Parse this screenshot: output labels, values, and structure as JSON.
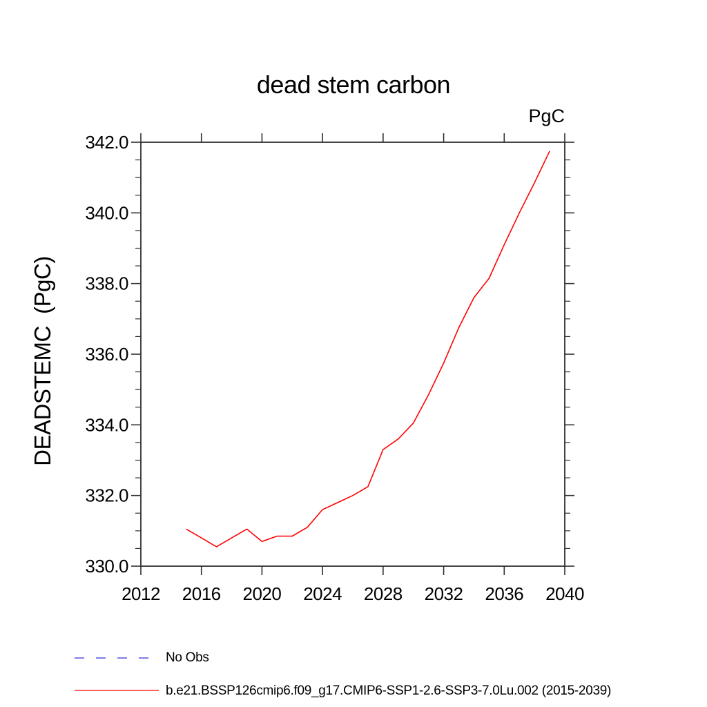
{
  "chart_data": {
    "type": "line",
    "title": "dead stem carbon",
    "units_label": "PgC",
    "ylabel": "DEADSTEMC  (PgC)",
    "xlabel": "",
    "xlim": [
      2012,
      2040
    ],
    "ylim": [
      330.0,
      342.0
    ],
    "grid": false,
    "x_ticks": [
      2012,
      2016,
      2020,
      2024,
      2028,
      2032,
      2036,
      2040
    ],
    "x_tick_labels": [
      "2012",
      "2016",
      "2020",
      "2024",
      "2028",
      "2032",
      "2036",
      "2040"
    ],
    "y_ticks": [
      330,
      332,
      334,
      336,
      338,
      340,
      342
    ],
    "y_tick_labels": [
      "330.0",
      "332.0",
      "334.0",
      "336.0",
      "338.0",
      "340.0",
      "342.0"
    ],
    "y_minor_step": 0.5,
    "axis_color": "#2f2f2f",
    "series": [
      {
        "name": "b.e21.BSSP126cmip6.f09_g17.CMIP6-SSP1-2.6-SSP3-7.0Lu.002 (2015-2039)",
        "color": "#ff0000",
        "style": "solid",
        "x": [
          2015,
          2016,
          2017,
          2018,
          2019,
          2020,
          2021,
          2022,
          2023,
          2024,
          2025,
          2026,
          2027,
          2028,
          2029,
          2030,
          2031,
          2032,
          2033,
          2034,
          2035,
          2036,
          2037,
          2038,
          2039
        ],
        "y": [
          331.05,
          330.8,
          330.55,
          330.8,
          331.05,
          330.7,
          330.85,
          330.85,
          331.1,
          331.6,
          331.8,
          332.0,
          332.25,
          333.3,
          333.6,
          334.05,
          334.85,
          335.75,
          336.75,
          337.6,
          338.15,
          339.1,
          340.0,
          340.85,
          341.75
        ]
      }
    ],
    "legend": [
      {
        "label": "No Obs",
        "color": "#7e7ee4",
        "style": "dashed"
      },
      {
        "label": "b.e21.BSSP126cmip6.f09_g17.CMIP6-SSP1-2.6-SSP3-7.0Lu.002 (2015-2039)",
        "color": "#ff2a2a",
        "style": "solid"
      }
    ],
    "legend_position": "bottom-left"
  }
}
